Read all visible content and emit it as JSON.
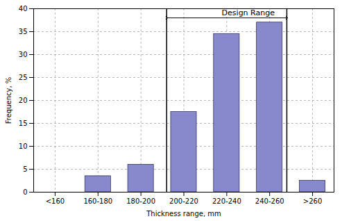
{
  "chart_data": {
    "type": "bar",
    "categories": [
      "<160",
      "160-180",
      "180-200",
      "200-220",
      "220-240",
      "240-260",
      ">260"
    ],
    "values": [
      0,
      3.5,
      6.0,
      17.5,
      34.5,
      37.0,
      2.5
    ],
    "color": "#8888cc",
    "xlabel": "Thickness range, mm",
    "ylabel": "Frequency, %",
    "ylim": [
      0,
      40
    ],
    "yticks": [
      0,
      5,
      10,
      15,
      20,
      25,
      30,
      35,
      40
    ],
    "grid": true,
    "annotations": [
      {
        "text": "Design Range",
        "from": "200-220",
        "to": "240-260"
      }
    ]
  }
}
